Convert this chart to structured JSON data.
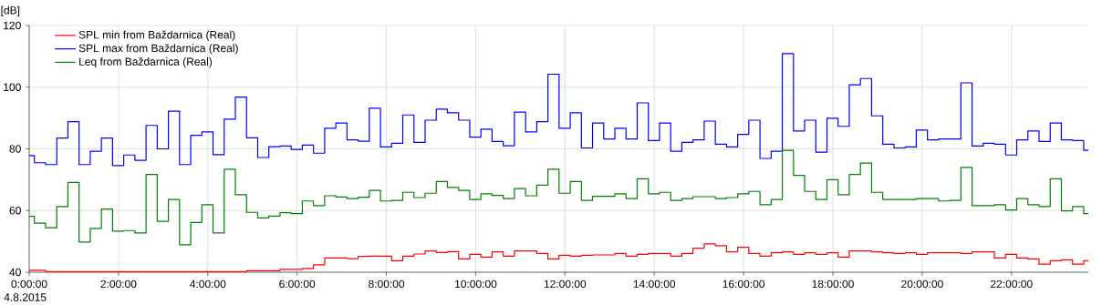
{
  "chart_data": {
    "type": "step",
    "ylabel": "[dB]",
    "x": [
      0,
      0.117,
      0.367,
      0.617,
      0.867,
      1.117,
      1.367,
      1.617,
      1.867,
      2.117,
      2.367,
      2.617,
      2.867,
      3.117,
      3.367,
      3.617,
      3.867,
      4.117,
      4.367,
      4.617,
      4.867,
      5.117,
      5.367,
      5.617,
      5.867,
      6.117,
      6.367,
      6.617,
      6.867,
      7.117,
      7.367,
      7.617,
      7.867,
      8.117,
      8.367,
      8.617,
      8.867,
      9.117,
      9.367,
      9.617,
      9.867,
      10.117,
      10.367,
      10.617,
      10.867,
      11.117,
      11.367,
      11.617,
      11.867,
      12.117,
      12.367,
      12.617,
      12.867,
      13.117,
      13.367,
      13.617,
      13.867,
      14.117,
      14.367,
      14.617,
      14.867,
      15.117,
      15.367,
      15.617,
      15.867,
      16.117,
      16.367,
      16.617,
      16.867,
      17.117,
      17.367,
      17.617,
      17.867,
      18.117,
      18.367,
      18.617,
      18.867,
      19.117,
      19.367,
      19.617,
      19.867,
      20.117,
      20.367,
      20.617,
      20.867,
      21.117,
      21.367,
      21.617,
      21.867,
      22.117,
      22.367,
      22.617,
      22.867,
      23.117,
      23.367,
      23.617
    ],
    "series": [
      {
        "name": "SPL min from Baždarnica (Real)",
        "color": "#ff0000",
        "values": [
          40.6,
          40.6,
          40.2,
          40.2,
          40.2,
          40.2,
          40.2,
          40.2,
          40.2,
          40.2,
          40.2,
          40.2,
          40.2,
          40.2,
          40.2,
          40.2,
          40.2,
          40.2,
          40.2,
          40.2,
          40.5,
          40.5,
          40.5,
          40.9,
          40.9,
          41.2,
          42.4,
          44.6,
          44.6,
          44.4,
          45.1,
          45.2,
          45.2,
          43.7,
          45.2,
          45.9,
          46.9,
          46.4,
          46.7,
          44.3,
          45.8,
          44.9,
          46.6,
          45.2,
          46.9,
          46.9,
          46.1,
          44.3,
          45.5,
          45.2,
          45.5,
          45.6,
          45.6,
          46.1,
          45.2,
          45.8,
          46.1,
          46.1,
          45.2,
          46.1,
          47.8,
          49.2,
          48.6,
          46.6,
          48.1,
          46.1,
          45.2,
          46.3,
          46.6,
          45.8,
          46.3,
          45.8,
          46.3,
          44.9,
          46.9,
          46.9,
          46.6,
          46.3,
          46.1,
          46.3,
          45.8,
          46.3,
          46.3,
          46.3,
          46.1,
          46.6,
          46.6,
          44.6,
          45.8,
          44.6,
          44.3,
          42.6,
          43.7,
          44.0,
          42.6,
          43.7
        ]
      },
      {
        "name": "SPL max from Baždarnica (Real)",
        "color": "#0000ff",
        "values": [
          77.8,
          75.5,
          74.9,
          83.5,
          88.8,
          74.9,
          79.2,
          83.5,
          74.6,
          78.0,
          76.3,
          87.6,
          80.0,
          92.2,
          74.9,
          84.4,
          85.5,
          78.1,
          89.6,
          96.8,
          83.6,
          77.2,
          80.7,
          80.9,
          79.8,
          81.2,
          78.6,
          86.7,
          88.4,
          82.9,
          82.5,
          93.2,
          80.6,
          81.8,
          91.0,
          82.1,
          89.3,
          92.9,
          91.7,
          89.3,
          83.8,
          86.4,
          82.4,
          81.0,
          91.9,
          85.5,
          88.8,
          104.2,
          86.7,
          91.7,
          80.3,
          88.4,
          83.2,
          86.7,
          83.2,
          94.9,
          82.7,
          88.4,
          79.2,
          82.1,
          82.9,
          89.0,
          81.5,
          80.6,
          84.7,
          89.3,
          76.9,
          79.2,
          110.9,
          85.8,
          89.3,
          78.9,
          89.9,
          87.3,
          100.8,
          102.8,
          90.7,
          81.5,
          80.3,
          80.6,
          86.1,
          82.9,
          83.2,
          83.2,
          101.4,
          80.9,
          81.8,
          81.5,
          78.0,
          82.9,
          85.8,
          82.4,
          88.4,
          82.9,
          82.7,
          79.5
        ]
      },
      {
        "name": "Leq from Baždarnica (Real)",
        "color": "#008000",
        "values": [
          58.1,
          55.9,
          54.4,
          61.3,
          69.1,
          49.8,
          54.2,
          60.5,
          53.3,
          53.5,
          52.7,
          71.7,
          56.5,
          63.6,
          48.9,
          56.1,
          61.9,
          52.7,
          73.4,
          65.1,
          59.4,
          57.6,
          58.2,
          59.3,
          59.0,
          63.1,
          61.6,
          64.8,
          64.4,
          63.9,
          64.3,
          66.5,
          63.1,
          63.3,
          65.9,
          64.2,
          65.6,
          69.4,
          67.5,
          66.5,
          63.6,
          65.4,
          64.9,
          63.9,
          67.1,
          64.8,
          68.2,
          73.4,
          65.6,
          69.4,
          63.3,
          64.6,
          64.6,
          65.4,
          63.9,
          70.3,
          65.4,
          65.9,
          63.3,
          63.9,
          64.5,
          64.5,
          63.9,
          64.2,
          65.4,
          66.2,
          61.9,
          63.6,
          79.5,
          71.4,
          66.2,
          63.6,
          70.0,
          65.1,
          71.7,
          75.4,
          65.9,
          63.6,
          63.6,
          63.6,
          63.9,
          63.9,
          63.1,
          63.3,
          74.0,
          61.6,
          61.6,
          61.9,
          60.2,
          63.9,
          61.9,
          61.3,
          70.3,
          59.9,
          61.3,
          59.0
        ]
      }
    ],
    "xlim": [
      0,
      23.72
    ],
    "ylim": [
      40,
      120
    ],
    "xticks": [
      {
        "value": 0,
        "label": "0:00:00"
      },
      {
        "value": 2,
        "label": "2:00:00"
      },
      {
        "value": 4,
        "label": "4:00:00"
      },
      {
        "value": 6,
        "label": "6:00:00"
      },
      {
        "value": 8,
        "label": "8:00:00"
      },
      {
        "value": 10,
        "label": "10:00:00"
      },
      {
        "value": 12,
        "label": "12:00:00"
      },
      {
        "value": 14,
        "label": "14:00:00"
      },
      {
        "value": 16,
        "label": "16:00:00"
      },
      {
        "value": 18,
        "label": "18:00:00"
      },
      {
        "value": 20,
        "label": "20:00:00"
      },
      {
        "value": 22,
        "label": "22:00:00"
      }
    ],
    "yticks": [
      40,
      60,
      80,
      100,
      120
    ],
    "grid": true,
    "legend": "top left",
    "annotations": [
      "4.8.2015"
    ]
  }
}
